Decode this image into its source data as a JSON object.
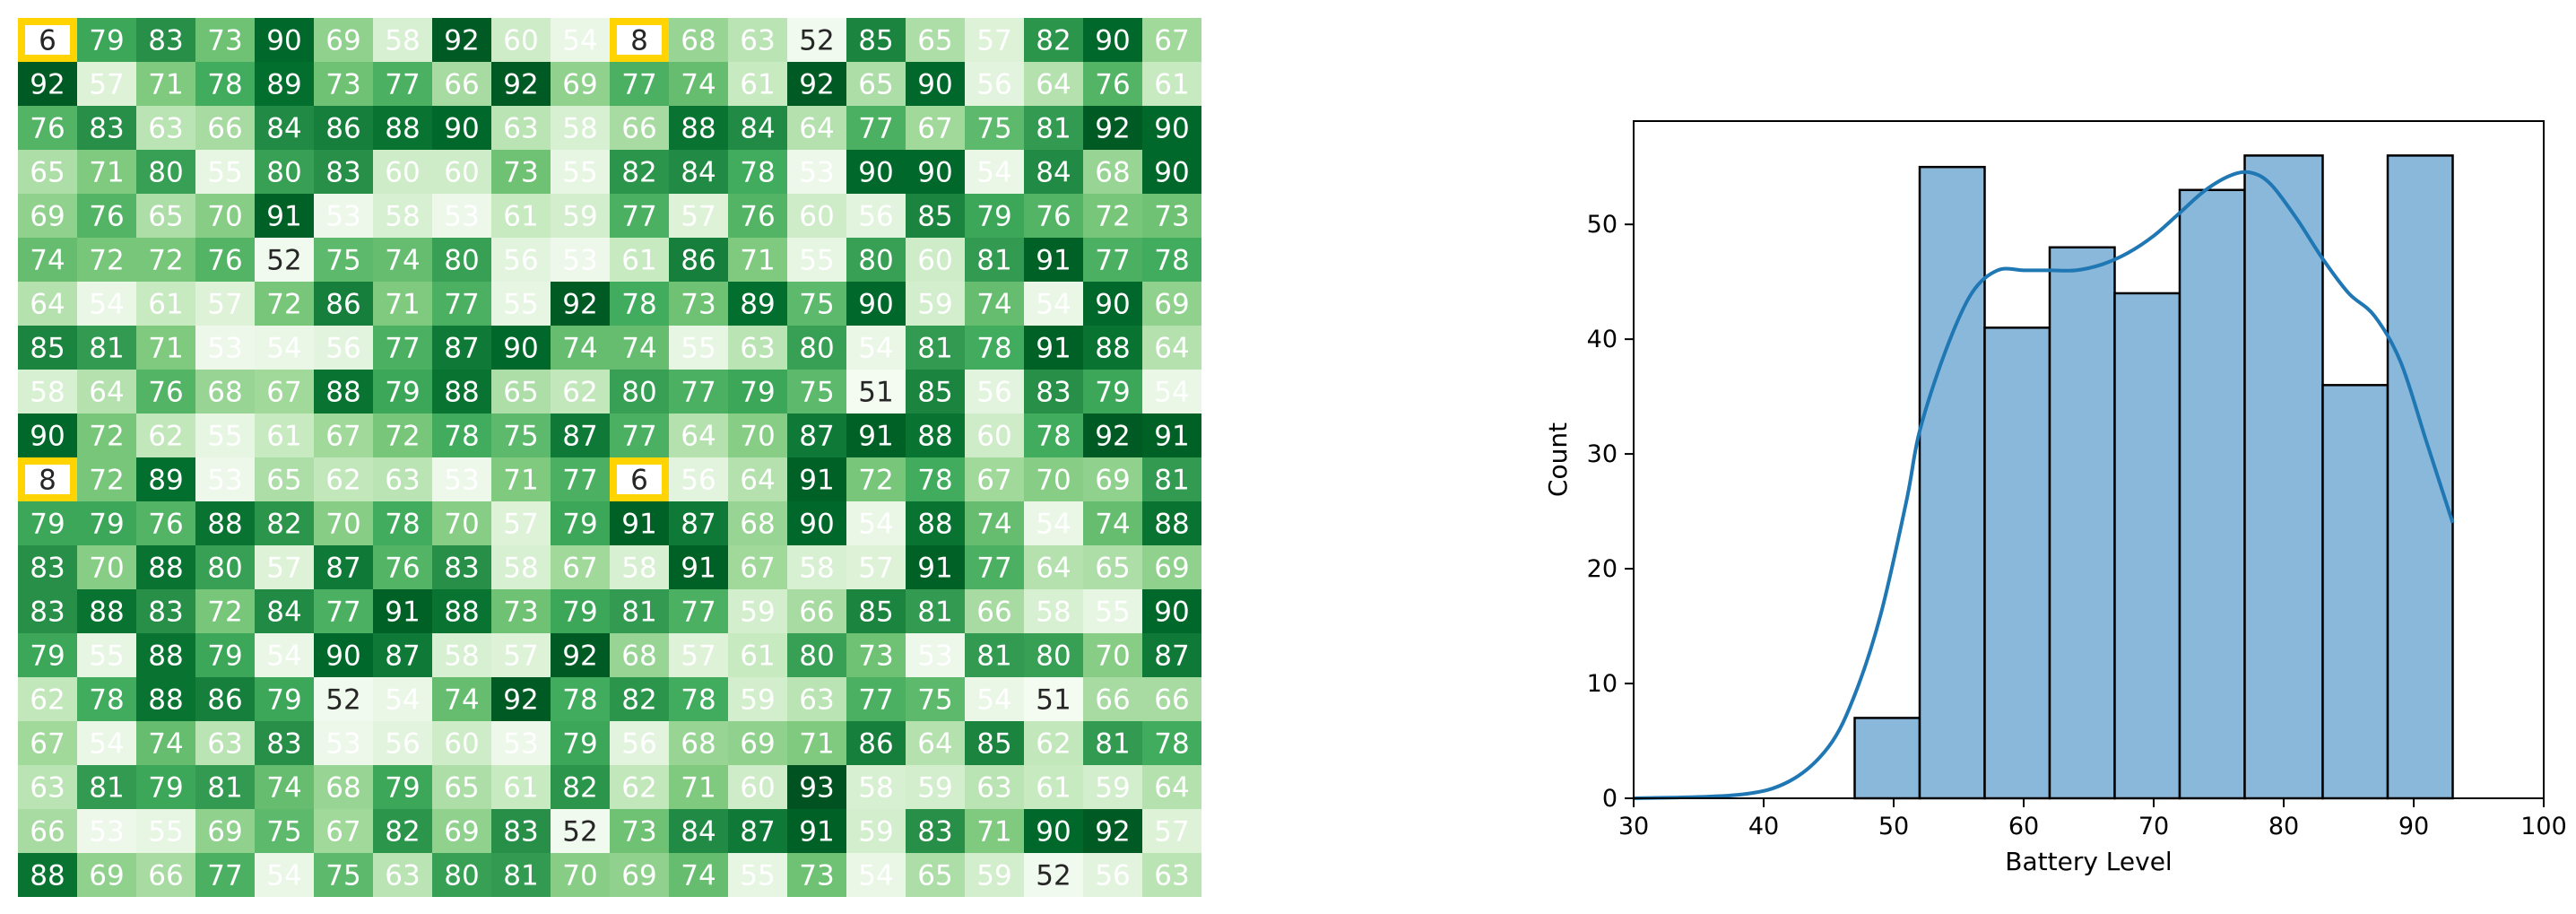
{
  "chart_data": [
    {
      "type": "heatmap",
      "title": "",
      "xlabel": "",
      "ylabel": "",
      "colormap": "Greens",
      "color_range": [
        50,
        95
      ],
      "highlight_color": "#ffd400",
      "highlight_cells": [
        [
          0,
          0
        ],
        [
          0,
          10
        ],
        [
          10,
          0
        ],
        [
          10,
          10
        ]
      ],
      "matrix": [
        [
          6,
          79,
          83,
          73,
          90,
          69,
          58,
          92,
          60,
          54,
          8,
          68,
          63,
          52,
          85,
          65,
          57,
          82,
          90,
          67
        ],
        [
          92,
          57,
          71,
          78,
          89,
          73,
          77,
          66,
          92,
          69,
          77,
          74,
          61,
          92,
          65,
          90,
          56,
          64,
          76,
          61
        ],
        [
          76,
          83,
          63,
          66,
          84,
          86,
          88,
          90,
          63,
          58,
          66,
          88,
          84,
          64,
          77,
          67,
          75,
          81,
          92,
          90
        ],
        [
          65,
          71,
          80,
          55,
          80,
          83,
          60,
          60,
          73,
          55,
          82,
          84,
          78,
          53,
          90,
          90,
          54,
          84,
          68,
          90
        ],
        [
          69,
          76,
          65,
          70,
          91,
          53,
          58,
          53,
          61,
          59,
          77,
          57,
          76,
          60,
          56,
          85,
          79,
          76,
          72,
          73
        ],
        [
          74,
          72,
          72,
          76,
          52,
          75,
          74,
          80,
          56,
          53,
          61,
          86,
          71,
          55,
          80,
          60,
          81,
          91,
          77,
          78
        ],
        [
          64,
          54,
          61,
          57,
          72,
          86,
          71,
          77,
          55,
          92,
          78,
          73,
          89,
          75,
          90,
          59,
          74,
          54,
          90,
          69
        ],
        [
          85,
          81,
          71,
          53,
          54,
          56,
          77,
          87,
          90,
          74,
          74,
          55,
          63,
          80,
          54,
          81,
          78,
          91,
          88,
          64
        ],
        [
          58,
          64,
          76,
          68,
          67,
          88,
          79,
          88,
          65,
          62,
          80,
          77,
          79,
          75,
          51,
          85,
          56,
          83,
          79,
          54
        ],
        [
          90,
          72,
          62,
          55,
          61,
          67,
          72,
          78,
          75,
          87,
          77,
          64,
          70,
          87,
          91,
          88,
          60,
          78,
          92,
          91
        ],
        [
          8,
          72,
          89,
          53,
          65,
          62,
          63,
          53,
          71,
          77,
          6,
          56,
          64,
          91,
          72,
          78,
          67,
          70,
          69,
          81
        ],
        [
          79,
          79,
          76,
          88,
          82,
          70,
          78,
          70,
          57,
          79,
          91,
          87,
          68,
          90,
          54,
          88,
          74,
          54,
          74,
          88
        ],
        [
          83,
          70,
          88,
          80,
          57,
          87,
          76,
          83,
          58,
          67,
          58,
          91,
          67,
          58,
          57,
          91,
          77,
          64,
          65,
          69
        ],
        [
          83,
          88,
          83,
          72,
          84,
          77,
          91,
          88,
          73,
          79,
          81,
          77,
          59,
          66,
          85,
          81,
          66,
          58,
          55,
          90
        ],
        [
          79,
          55,
          88,
          79,
          54,
          90,
          87,
          58,
          57,
          92,
          68,
          57,
          61,
          80,
          73,
          53,
          81,
          80,
          70,
          87
        ],
        [
          62,
          78,
          88,
          86,
          79,
          52,
          54,
          74,
          92,
          78,
          82,
          78,
          59,
          63,
          77,
          75,
          54,
          51,
          66,
          66
        ],
        [
          67,
          54,
          74,
          63,
          83,
          53,
          56,
          60,
          53,
          79,
          56,
          68,
          69,
          71,
          86,
          64,
          85,
          62,
          81,
          78
        ],
        [
          63,
          81,
          79,
          81,
          74,
          68,
          79,
          65,
          61,
          82,
          62,
          71,
          60,
          93,
          58,
          59,
          63,
          61,
          59,
          64
        ],
        [
          66,
          53,
          55,
          69,
          75,
          67,
          82,
          69,
          83,
          52,
          73,
          84,
          87,
          91,
          59,
          83,
          71,
          90,
          92,
          57
        ],
        [
          88,
          69,
          66,
          77,
          54,
          75,
          63,
          80,
          81,
          70,
          69,
          74,
          55,
          73,
          54,
          65,
          59,
          52,
          56,
          63
        ]
      ]
    },
    {
      "type": "bar",
      "subtype": "histogram_with_kde",
      "title": "",
      "xlabel": "Battery Level",
      "ylabel": "Count",
      "xlim": [
        30,
        100
      ],
      "ylim": [
        0,
        59
      ],
      "xticks": [
        "30",
        "40",
        "50",
        "60",
        "70",
        "80",
        "90",
        "100"
      ],
      "yticks": [
        "0",
        "10",
        "20",
        "30",
        "40",
        "50"
      ],
      "bar_color": "#8ab8db",
      "line_color": "#1f77b4",
      "bins": [
        {
          "start": 47,
          "end": 52,
          "count": 7
        },
        {
          "start": 52,
          "end": 57,
          "count": 55
        },
        {
          "start": 57,
          "end": 62,
          "count": 41
        },
        {
          "start": 62,
          "end": 67,
          "count": 48
        },
        {
          "start": 67,
          "end": 72,
          "count": 44
        },
        {
          "start": 72,
          "end": 77,
          "count": 53
        },
        {
          "start": 77,
          "end": 83,
          "count": 56
        },
        {
          "start": 83,
          "end": 88,
          "count": 36
        },
        {
          "start": 88,
          "end": 93,
          "count": 56
        }
      ],
      "kde": [
        [
          30,
          0
        ],
        [
          38,
          0.3
        ],
        [
          42,
          1.5
        ],
        [
          45,
          4.5
        ],
        [
          47,
          9
        ],
        [
          49,
          16
        ],
        [
          51,
          26
        ],
        [
          52,
          32
        ],
        [
          54,
          39
        ],
        [
          56,
          44
        ],
        [
          58,
          46
        ],
        [
          60,
          46
        ],
        [
          62,
          46
        ],
        [
          64,
          46
        ],
        [
          66,
          46.5
        ],
        [
          68,
          47.5
        ],
        [
          70,
          49
        ],
        [
          72,
          51
        ],
        [
          74,
          53
        ],
        [
          76,
          54.3
        ],
        [
          77.5,
          54.5
        ],
        [
          79,
          53.5
        ],
        [
          81,
          50.5
        ],
        [
          83,
          47
        ],
        [
          85,
          44
        ],
        [
          87,
          42
        ],
        [
          89,
          38
        ],
        [
          91,
          31
        ],
        [
          93,
          24
        ]
      ]
    }
  ]
}
